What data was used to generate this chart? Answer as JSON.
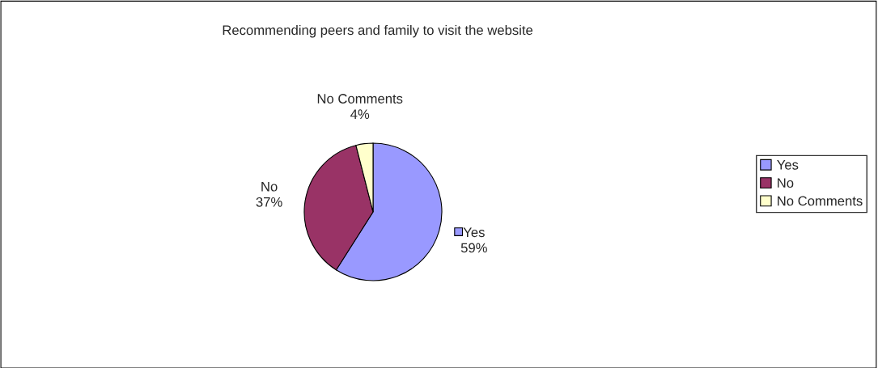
{
  "chart_data": {
    "type": "pie",
    "title": "Recommending peers and family to visit the website",
    "categories": [
      "Yes",
      "No",
      "No Comments"
    ],
    "values": [
      59,
      37,
      4
    ],
    "colors": [
      "#9999ff",
      "#993366",
      "#ffffcc"
    ],
    "value_labels": [
      "59%",
      "37%",
      "4%"
    ],
    "legend": "right"
  }
}
